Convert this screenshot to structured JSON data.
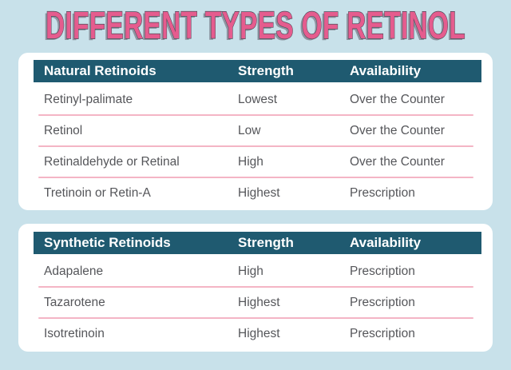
{
  "title": {
    "text": "DIFFERENT TYPES OF RETINOL"
  },
  "colors": {
    "background": "#C8E1EA",
    "card": "#FFFFFF",
    "header_bar": "#1F5A70",
    "header_text": "#FFFFFF",
    "row_text": "#55565A",
    "divider": "#F4B5C5",
    "title_fill": "#E55C8E",
    "title_outline": "#4B4C59",
    "title_shadow": "#8E96A2"
  },
  "tables": [
    {
      "header": {
        "category": "Natural Retinoids",
        "strength": "Strength",
        "availability": "Availability"
      },
      "rows": [
        {
          "name": "Retinyl-palimate",
          "strength": "Lowest",
          "availability": "Over the Counter"
        },
        {
          "name": "Retinol",
          "strength": "Low",
          "availability": "Over the Counter"
        },
        {
          "name": "Retinaldehyde or Retinal",
          "strength": "High",
          "availability": "Over the Counter"
        },
        {
          "name": "Tretinoin or Retin-A",
          "strength": "Highest",
          "availability": "Prescription"
        }
      ]
    },
    {
      "header": {
        "category": "Synthetic Retinoids",
        "strength": "Strength",
        "availability": "Availability"
      },
      "rows": [
        {
          "name": "Adapalene",
          "strength": "High",
          "availability": "Prescription"
        },
        {
          "name": "Tazarotene",
          "strength": "Highest",
          "availability": "Prescription"
        },
        {
          "name": "Isotretinoin",
          "strength": "Highest",
          "availability": "Prescription"
        }
      ]
    }
  ],
  "chart_data": [
    {
      "type": "table",
      "title": "Natural Retinoids",
      "columns": [
        "Natural Retinoids",
        "Strength",
        "Availability"
      ],
      "rows": [
        [
          "Retinyl-palimate",
          "Lowest",
          "Over the Counter"
        ],
        [
          "Retinol",
          "Low",
          "Over the Counter"
        ],
        [
          "Retinaldehyde or Retinal",
          "High",
          "Over the Counter"
        ],
        [
          "Tretinoin or Retin-A",
          "Highest",
          "Prescription"
        ]
      ]
    },
    {
      "type": "table",
      "title": "Synthetic Retinoids",
      "columns": [
        "Synthetic Retinoids",
        "Strength",
        "Availability"
      ],
      "rows": [
        [
          "Adapalene",
          "High",
          "Prescription"
        ],
        [
          "Tazarotene",
          "Highest",
          "Prescription"
        ],
        [
          "Isotretinoin",
          "Highest",
          "Prescription"
        ]
      ]
    }
  ]
}
